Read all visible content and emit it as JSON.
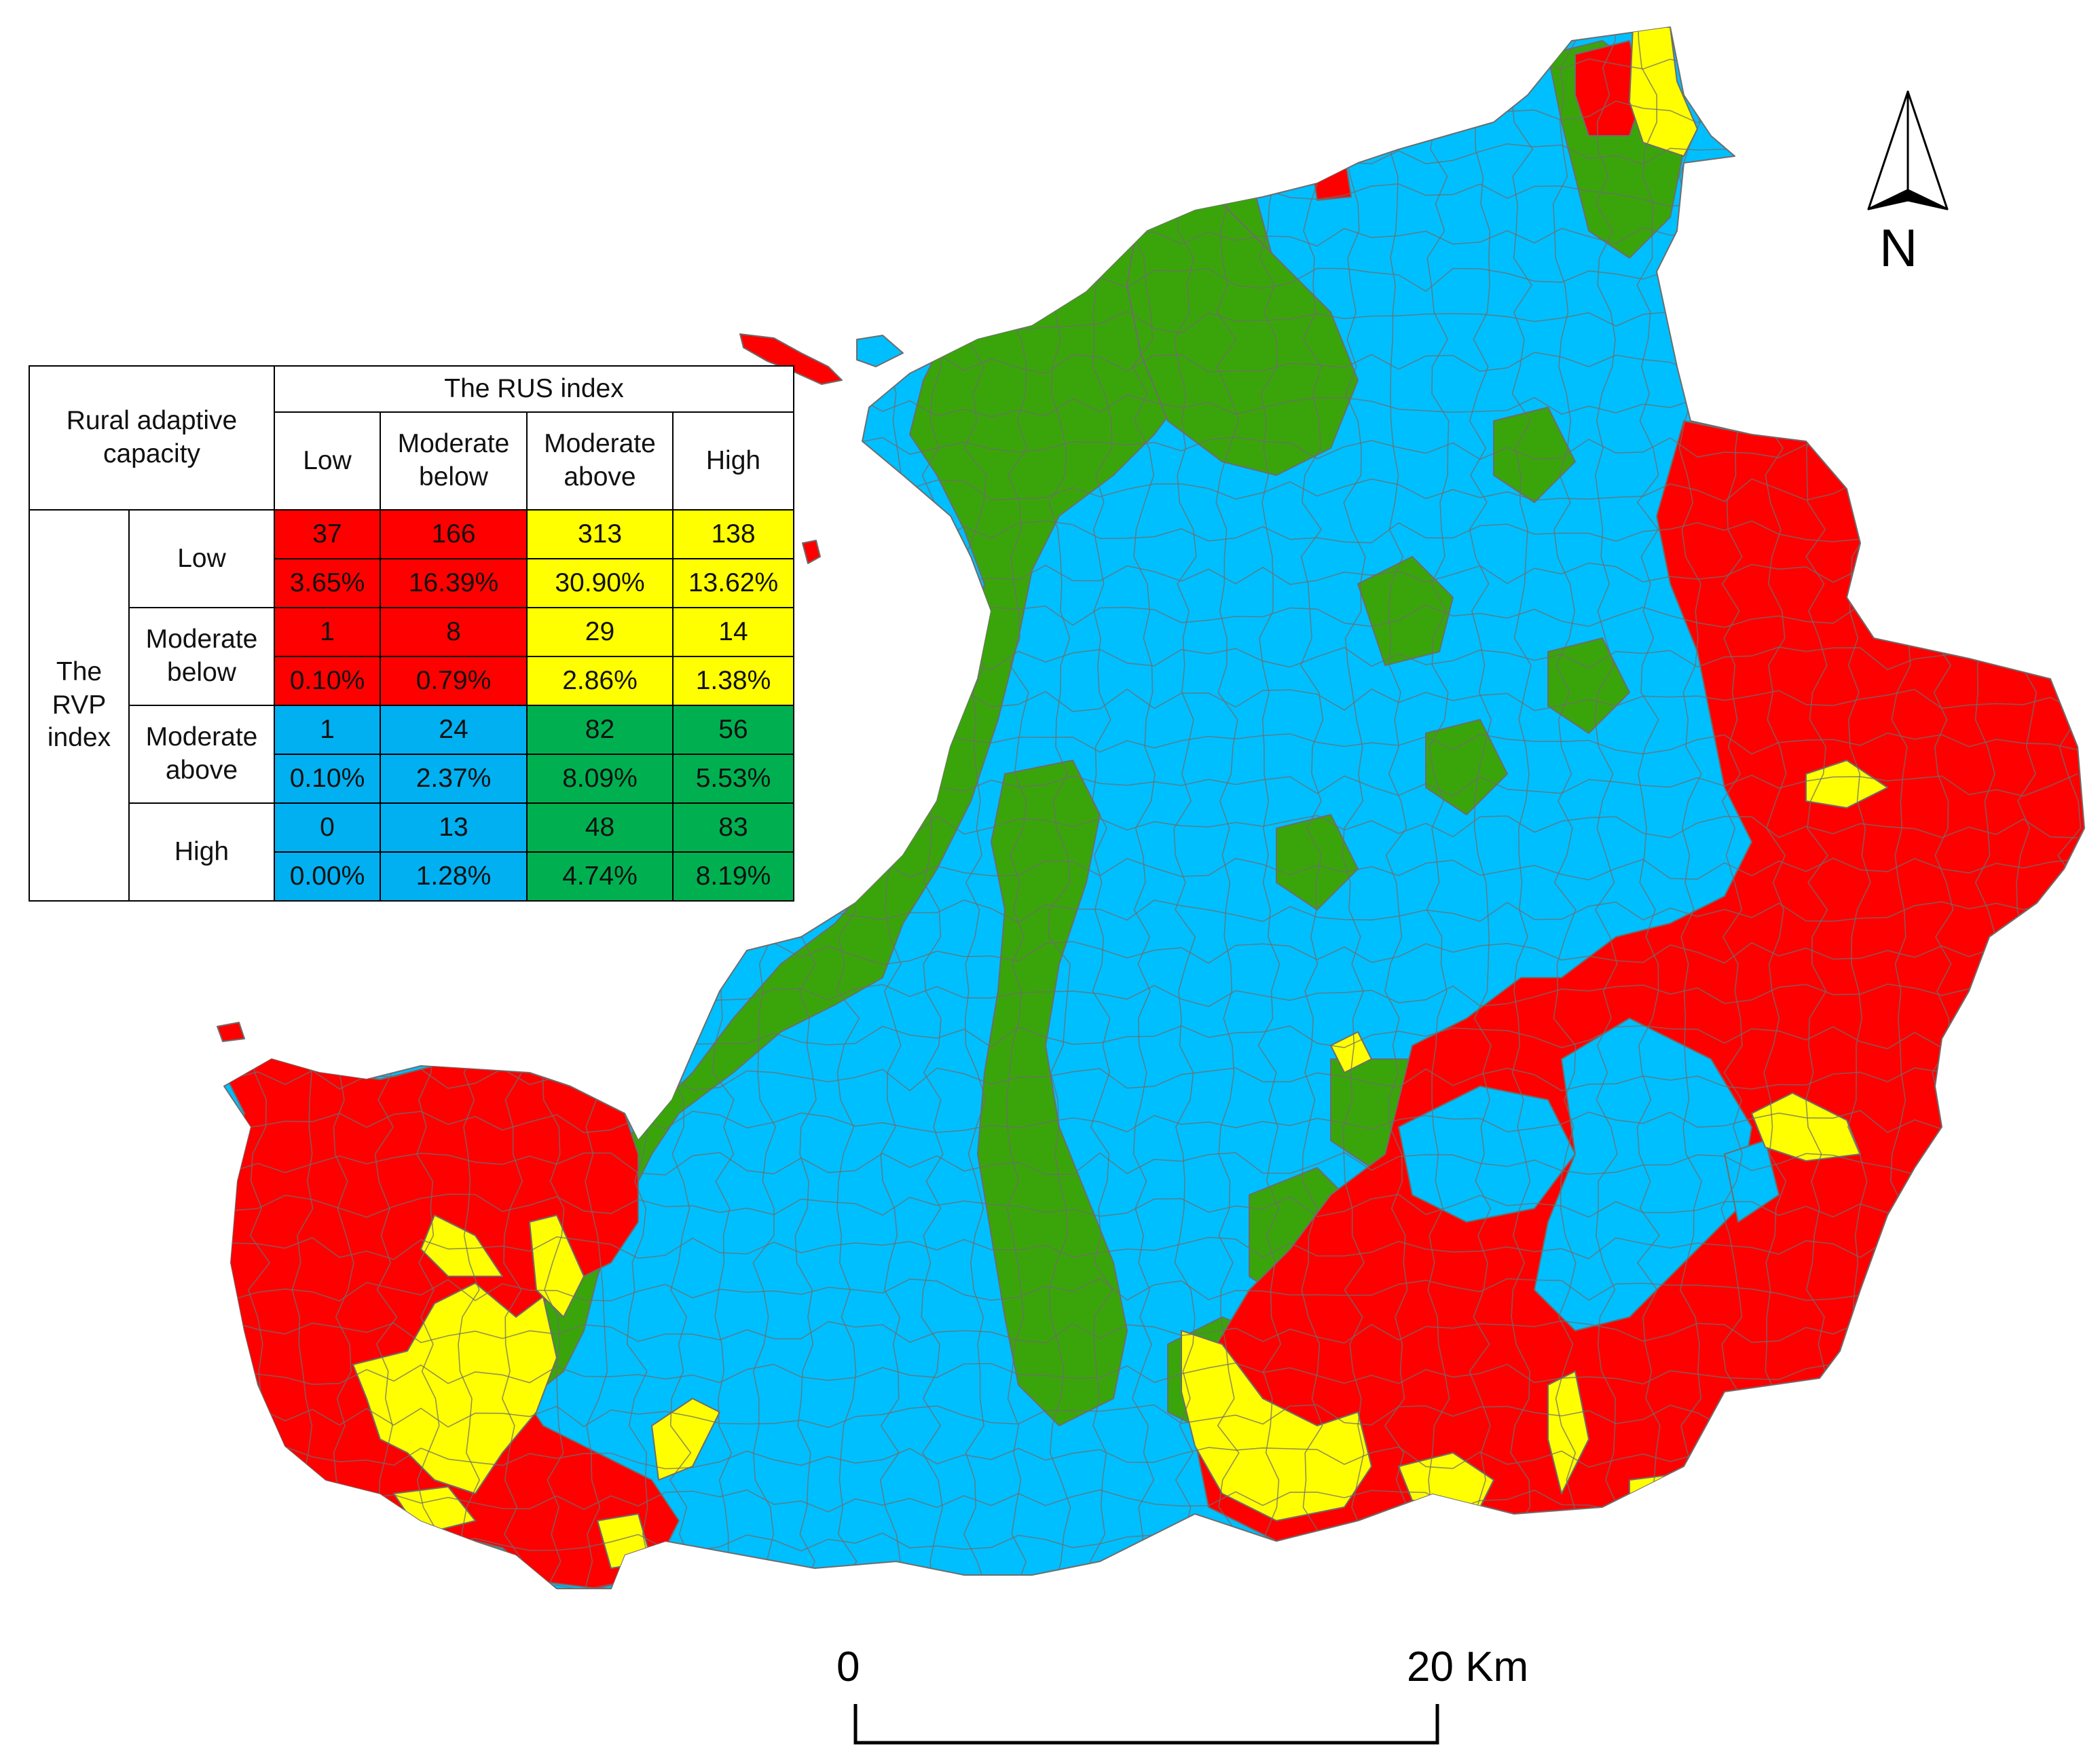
{
  "map": {
    "legend_colors": {
      "red": "#ff0000",
      "yellow": "#ffff00",
      "blue": "#00bfff",
      "green": "#3aa50a"
    },
    "boundary_color": "#6d6d6d"
  },
  "legend": {
    "corner_label": "Rural adaptive capacity",
    "col_group_header": "The RUS index",
    "row_group_header": "The RVP index",
    "columns": [
      {
        "line1": "Low",
        "line2": ""
      },
      {
        "line1": "Moderate",
        "line2": "below"
      },
      {
        "line1": "Moderate",
        "line2": "above"
      },
      {
        "line1": "High",
        "line2": ""
      }
    ],
    "rows": [
      {
        "label_line1": "Low",
        "label_line2": "",
        "counts": [
          "37",
          "166",
          "313",
          "138"
        ],
        "percents": [
          "3.65%",
          "16.39%",
          "30.90%",
          "13.62%"
        ],
        "colors": [
          "red",
          "red",
          "yellow",
          "yellow"
        ]
      },
      {
        "label_line1": "Moderate",
        "label_line2": "below",
        "counts": [
          "1",
          "8",
          "29",
          "14"
        ],
        "percents": [
          "0.10%",
          "0.79%",
          "2.86%",
          "1.38%"
        ],
        "colors": [
          "red",
          "red",
          "yellow",
          "yellow"
        ]
      },
      {
        "label_line1": "Moderate",
        "label_line2": "above",
        "counts": [
          "1",
          "24",
          "82",
          "56"
        ],
        "percents": [
          "0.10%",
          "2.37%",
          "8.09%",
          "5.53%"
        ],
        "colors": [
          "blue",
          "blue",
          "green",
          "green"
        ]
      },
      {
        "label_line1": "High",
        "label_line2": "",
        "counts": [
          "0",
          "13",
          "48",
          "83"
        ],
        "percents": [
          "0.00%",
          "1.28%",
          "4.74%",
          "8.19%"
        ],
        "colors": [
          "blue",
          "blue",
          "green",
          "green"
        ]
      }
    ]
  },
  "north_arrow": {
    "label": "N"
  },
  "scale_bar": {
    "start_label": "0",
    "end_label": "20 Km"
  }
}
